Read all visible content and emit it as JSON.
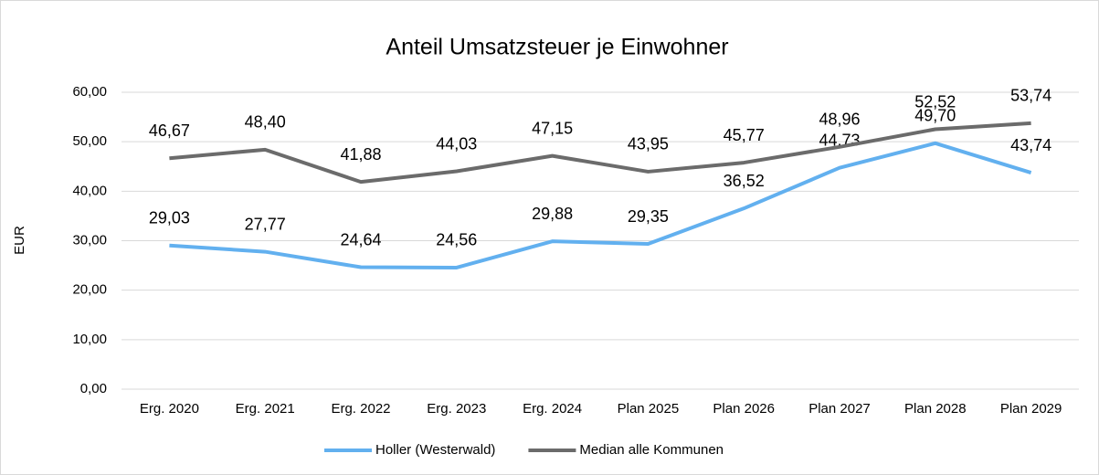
{
  "chart_data": {
    "type": "line",
    "title": "Anteil Umsatzsteuer je Einwohner",
    "y_label": "EUR",
    "categories": [
      "Erg. 2020",
      "Erg. 2021",
      "Erg. 2022",
      "Erg. 2023",
      "Erg. 2024",
      "Plan 2025",
      "Plan 2026",
      "Plan 2027",
      "Plan 2028",
      "Plan 2029"
    ],
    "series": [
      {
        "name": "Holler (Westerwald)",
        "color": "#62b0ef",
        "values": [
          29.03,
          27.77,
          24.64,
          24.56,
          29.88,
          29.35,
          36.52,
          44.73,
          49.7,
          43.74
        ],
        "value_labels": [
          "29,03",
          "27,77",
          "24,64",
          "24,56",
          "29,88",
          "29,35",
          "36,52",
          "44,73",
          "49,70",
          "43,74"
        ]
      },
      {
        "name": "Median alle Kommunen",
        "color": "#6b6b6b",
        "values": [
          46.67,
          48.4,
          41.88,
          44.03,
          47.15,
          43.95,
          45.77,
          48.96,
          52.52,
          53.74
        ],
        "value_labels": [
          "46,67",
          "48,40",
          "41,88",
          "44,03",
          "47,15",
          "43,95",
          "45,77",
          "48,96",
          "52,52",
          "53,74"
        ]
      }
    ],
    "ylim": [
      0,
      60
    ],
    "yticks": [
      {
        "value": 0,
        "label": "0,00"
      },
      {
        "value": 10,
        "label": "10,00"
      },
      {
        "value": 20,
        "label": "20,00"
      },
      {
        "value": 30,
        "label": "30,00"
      },
      {
        "value": 40,
        "label": "40,00"
      },
      {
        "value": 50,
        "label": "50,00"
      },
      {
        "value": 60,
        "label": "60,00"
      }
    ],
    "grid": true,
    "legend": "bottom"
  }
}
